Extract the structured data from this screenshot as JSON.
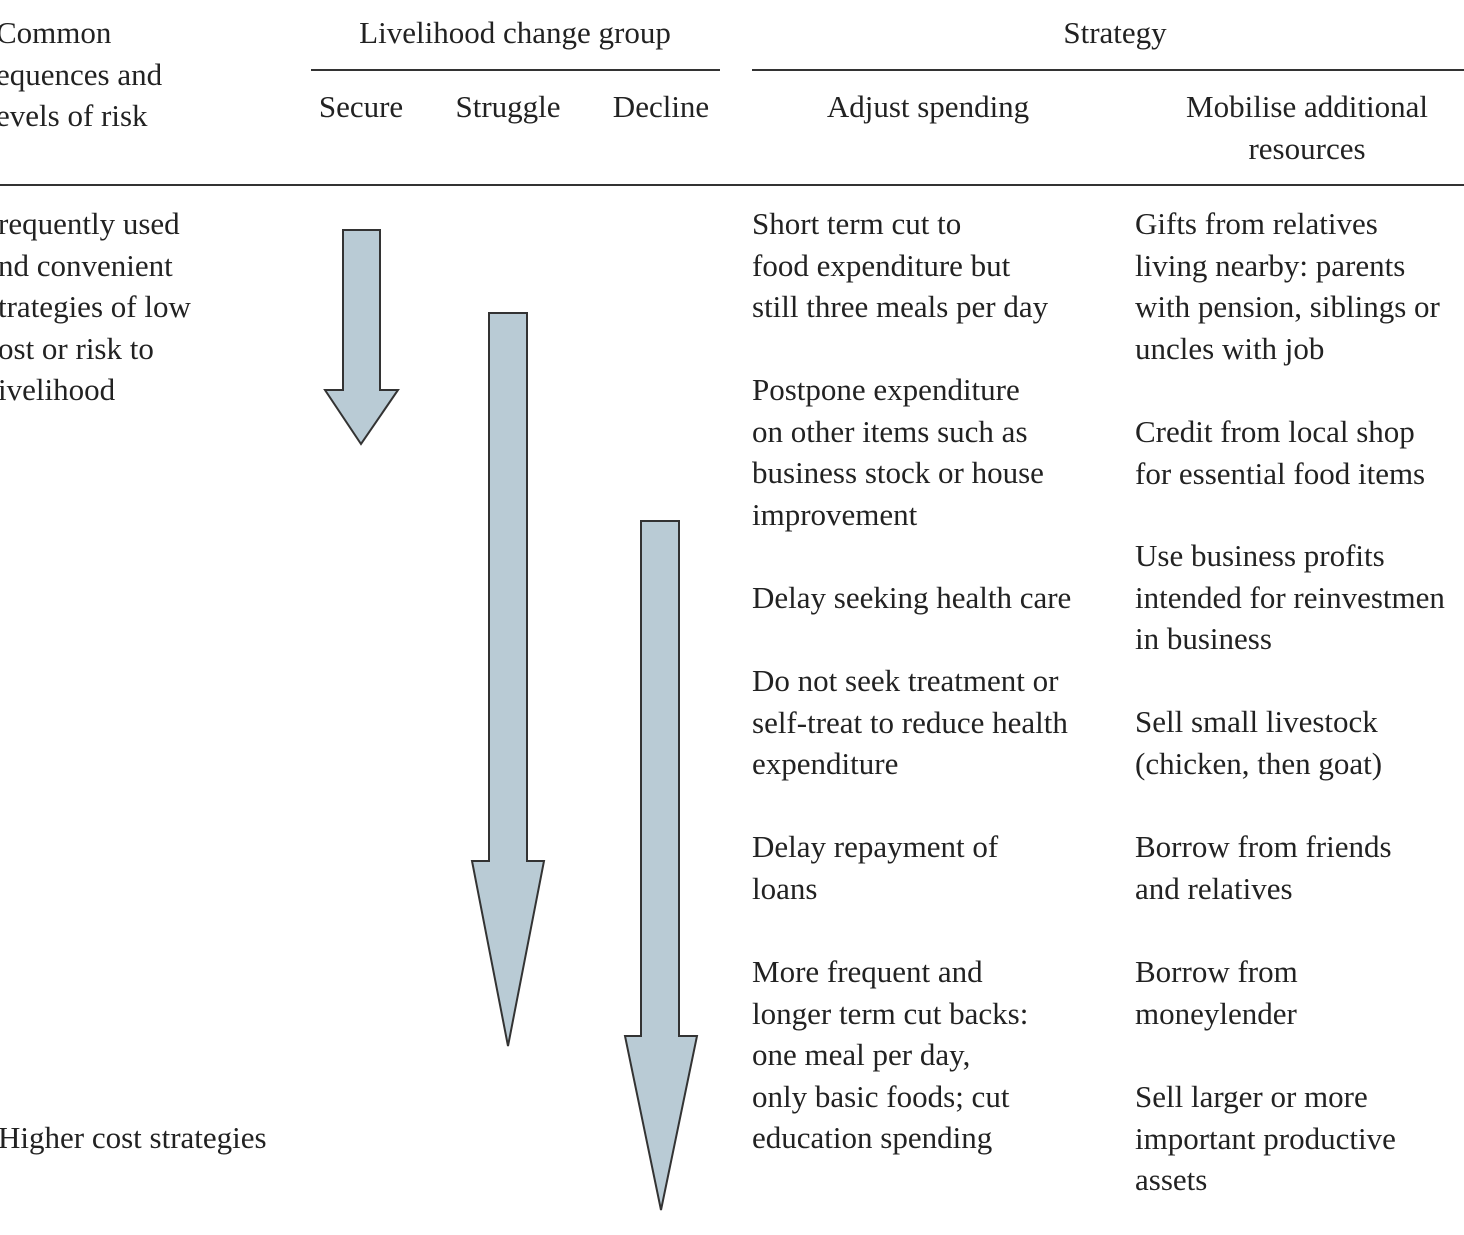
{
  "header": {
    "risk": [
      "Common",
      "equences and",
      "evels of risk"
    ],
    "group": "Livelihood change group",
    "groups": [
      "Secure",
      "Struggle",
      "Decline"
    ],
    "strategy": "Strategy",
    "adjust": "Adjust spending",
    "mobilise": [
      "Mobilise additional",
      "resources"
    ]
  },
  "body": {
    "risk": [
      [
        "requently used",
        "nd convenient",
        "trategies of low",
        "ost or risk to",
        "ivelihood"
      ],
      [
        "Higher cost strategies"
      ]
    ],
    "adjust": [
      [
        "Short term cut to",
        "food expenditure but",
        "still three meals per day"
      ],
      [
        "Postpone expenditure",
        "on other items such as",
        "business stock or house",
        "improvement"
      ],
      [
        "Delay seeking health care"
      ],
      [
        "Do not seek treatment or",
        "self-treat to reduce health",
        "expenditure"
      ],
      [
        "Delay repayment of",
        "loans"
      ],
      [
        "More frequent and",
        "longer term cut backs:",
        "one meal per day,",
        "only basic foods; cut",
        "education spending"
      ]
    ],
    "mobilise": [
      [
        "Gifts from relatives",
        "living nearby: parents",
        "with pension, siblings or",
        "uncles with job"
      ],
      [
        "Credit from local shop",
        "for essential food items"
      ],
      [
        "Use business profits",
        "intended for reinvestmen",
        "in business"
      ],
      [
        "Sell small livestock",
        "(chicken, then goat)"
      ],
      [
        "Borrow from friends",
        "and relatives"
      ],
      [
        "Borrow from",
        "moneylender"
      ],
      [
        "Sell larger or more",
        "important productive",
        "assets"
      ]
    ]
  }
}
